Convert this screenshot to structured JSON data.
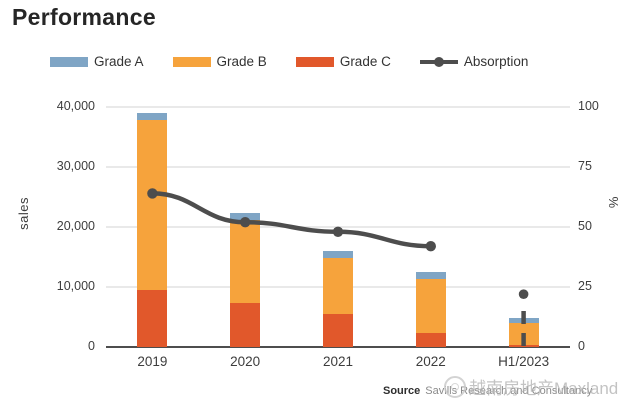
{
  "title": "Performance",
  "legend": {
    "items": [
      {
        "label": "Grade A",
        "color": "#7fa5c5",
        "type": "swatch"
      },
      {
        "label": "Grade B",
        "color": "#f6a33c",
        "type": "swatch"
      },
      {
        "label": "Grade C",
        "color": "#e1582b",
        "type": "swatch"
      },
      {
        "label": "Absorption",
        "color": "#4d4d4d",
        "type": "line"
      }
    ]
  },
  "chart_data": {
    "type": "bar",
    "subtype": "stacked-bars-with-line",
    "categories": [
      "2019",
      "2020",
      "2021",
      "2022",
      "H1/2023"
    ],
    "series": [
      {
        "name": "Grade A",
        "color": "#7fa5c5",
        "values": [
          1200,
          1100,
          1200,
          1200,
          800
        ]
      },
      {
        "name": "Grade B",
        "color": "#f6a33c",
        "values": [
          28300,
          13900,
          9300,
          9000,
          3700
        ]
      },
      {
        "name": "Grade C",
        "color": "#e1582b",
        "values": [
          9500,
          7300,
          5500,
          2300,
          300
        ]
      }
    ],
    "stack_order_bottom_to_top": [
      "Grade C",
      "Grade B",
      "Grade A"
    ],
    "bar_totals": [
      39000,
      22300,
      16000,
      12500,
      4800
    ],
    "line": {
      "name": "Absorption",
      "color": "#4d4d4d",
      "values": [
        64,
        52,
        48,
        42,
        null
      ],
      "isolated_point": {
        "category_index": 4,
        "value": 22
      },
      "dashed_drop": {
        "category_index": 4,
        "from": 15,
        "to": 0
      }
    },
    "left_axis": {
      "label": "sales",
      "min": 0,
      "max": 40000,
      "ticks": [
        "0",
        "10,000",
        "20,000",
        "30,000",
        "40,000"
      ]
    },
    "right_axis": {
      "label": "%",
      "min": 0,
      "max": 100,
      "ticks": [
        "0",
        "25",
        "50",
        "75",
        "100"
      ]
    },
    "grid": true,
    "legend_position": "top"
  },
  "source": {
    "prefix": "Source",
    "text": "Savills Research and Consultancy"
  },
  "watermark": {
    "icon": "circle-logo-icon",
    "text": "越南房地产Maxland"
  }
}
